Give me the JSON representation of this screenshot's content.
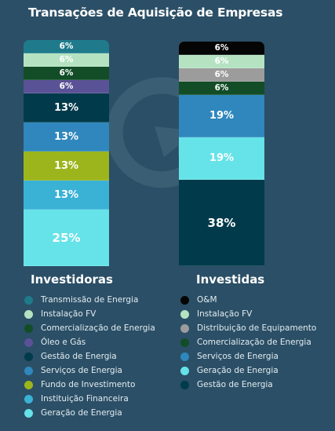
{
  "title": "Transações de Aquisição de Empresas",
  "chart_data": {
    "type": "bar",
    "stacked": true,
    "grid": false,
    "legend_placement": "bottom",
    "bars": [
      {
        "name": "Investidoras",
        "segments_top_to_bottom": [
          {
            "name": "Transmissão de Energia",
            "value": 6,
            "label": "6%",
            "color": "#1f7b8c"
          },
          {
            "name": "Instalação FV",
            "value": 6,
            "label": "6%",
            "color": "#b5e3c2"
          },
          {
            "name": "Comercialização de Energia",
            "value": 6,
            "label": "6%",
            "color": "#124d27"
          },
          {
            "name": "Óleo e Gás",
            "value": 6,
            "label": "6%",
            "color": "#5a5296"
          },
          {
            "name": "Gestão de Energia",
            "value": 13,
            "label": "13%",
            "color": "#013b4b"
          },
          {
            "name": "Serviços de Energia",
            "value": 13,
            "label": "13%",
            "color": "#2f87bd"
          },
          {
            "name": "Fundo de Investimento",
            "value": 13,
            "label": "13%",
            "color": "#9cb51c"
          },
          {
            "name": "Instituição Financeira",
            "value": 13,
            "label": "13%",
            "color": "#3ab2d6"
          },
          {
            "name": "Geração de Energia",
            "value": 25,
            "label": "25%",
            "color": "#65e3e9"
          }
        ]
      },
      {
        "name": "Investidas",
        "segments_top_to_bottom": [
          {
            "name": "O&M",
            "value": 6,
            "label": "6%",
            "color": "#050505"
          },
          {
            "name": "Instalação FV",
            "value": 6,
            "label": "6%",
            "color": "#b5e3c2"
          },
          {
            "name": "Distribuição de Equipamento",
            "value": 6,
            "label": "6%",
            "color": "#9c9c9c"
          },
          {
            "name": "Comercialização de Energia",
            "value": 6,
            "label": "6%",
            "color": "#124d27"
          },
          {
            "name": "Serviços de Energia",
            "value": 19,
            "label": "19%",
            "color": "#2f87bd"
          },
          {
            "name": "Geração de Energia",
            "value": 19,
            "label": "19%",
            "color": "#65e3e9"
          },
          {
            "name": "Gestão de Energia",
            "value": 38,
            "label": "38%",
            "color": "#013b4b"
          }
        ]
      }
    ],
    "legends": [
      {
        "items": [
          {
            "label": "Transmissão de Energia",
            "color": "#1f7b8c"
          },
          {
            "label": "Instalação FV",
            "color": "#b5e3c2"
          },
          {
            "label": "Comercialização de Energia",
            "color": "#124d27"
          },
          {
            "label": "Óleo e Gás",
            "color": "#5a5296"
          },
          {
            "label": "Gestão de Energia",
            "color": "#013b4b"
          },
          {
            "label": "Serviços de Energia",
            "color": "#2f87bd"
          },
          {
            "label": "Fundo de Investimento",
            "color": "#9cb51c"
          },
          {
            "label": "Instituição Financeira",
            "color": "#3ab2d6"
          },
          {
            "label": "Geração de Energia",
            "color": "#65e3e9"
          }
        ]
      },
      {
        "items": [
          {
            "label": "O&M",
            "color": "#050505"
          },
          {
            "label": "Instalação FV",
            "color": "#b5e3c2"
          },
          {
            "label": "Distribuição de Equipamento",
            "color": "#9c9c9c"
          },
          {
            "label": "Comercialização de Energia",
            "color": "#124d27"
          },
          {
            "label": "Serviços de Energia",
            "color": "#2f87bd"
          },
          {
            "label": "Geração de Energia",
            "color": "#65e3e9"
          },
          {
            "label": "Gestão de Energia",
            "color": "#013b4b"
          }
        ]
      }
    ]
  }
}
